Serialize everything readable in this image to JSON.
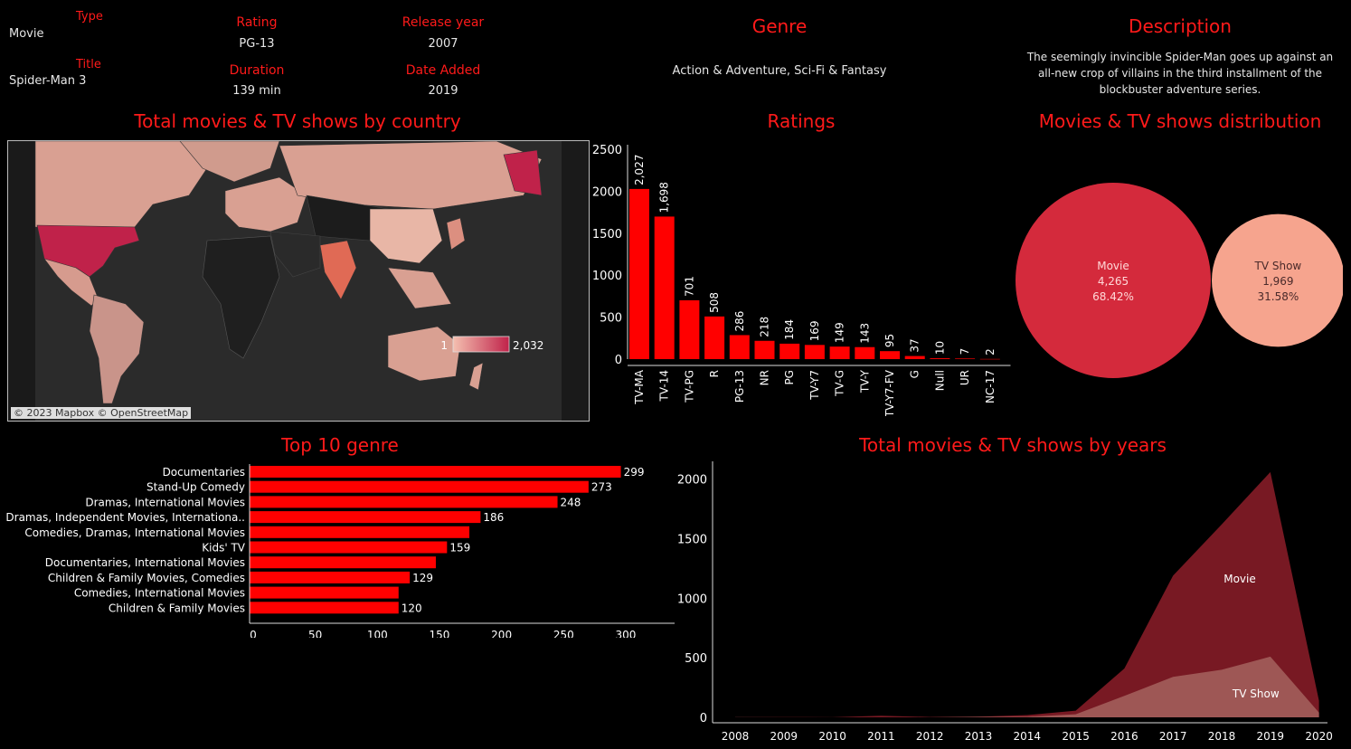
{
  "info": {
    "type_label": "Type",
    "type_value": "Movie",
    "title_label": "Title",
    "title_value": "Spider-Man 3",
    "rating_label": "Rating",
    "rating_value": "PG-13",
    "duration_label": "Duration",
    "duration_value": "139 min",
    "release_label": "Release year",
    "release_value": "2007",
    "added_label": "Date Added",
    "added_value": "2019",
    "genre_label": "Genre",
    "genre_value": "Action & Adventure, Sci-Fi & Fantasy",
    "description_label": "Description",
    "description_value": "The seemingly invincible Spider-Man goes up against an all-new crop of villains in the third installment of the blockbuster adventure series."
  },
  "map": {
    "title": "Total movies & TV shows by country",
    "legend_min": "1",
    "legend_max": "2,032",
    "credit": "© 2023 Mapbox © OpenStreetMap",
    "color_low": "#f4c0b0",
    "color_high": "#c0224a"
  },
  "titles": {
    "ratings": "Ratings",
    "distribution": "Movies & TV shows distribution",
    "genre": "Top 10 genre",
    "years": "Total movies & TV shows by years"
  },
  "chart_data": [
    {
      "type": "bar",
      "title": "Ratings",
      "categories": [
        "TV-MA",
        "TV-14",
        "TV-PG",
        "R",
        "PG-13",
        "NR",
        "PG",
        "TV-Y7",
        "TV-G",
        "TV-Y",
        "TV-Y7-FV",
        "G",
        "Null",
        "UR",
        "NC-17"
      ],
      "values": [
        2027,
        1698,
        701,
        508,
        286,
        218,
        184,
        169,
        149,
        143,
        95,
        37,
        10,
        7,
        2
      ],
      "labels": [
        "2,027",
        "1,698",
        "701",
        "508",
        "286",
        "218",
        "184",
        "169",
        "149",
        "143",
        "95",
        "37",
        "10",
        "7",
        "2"
      ],
      "yticks": [
        "0",
        "500",
        "1000",
        "1500",
        "2000",
        "2500"
      ],
      "ylim": [
        0,
        2500
      ],
      "color": "#ff0000"
    },
    {
      "type": "pie",
      "title": "Movies & TV shows distribution",
      "series": [
        {
          "name": "Movie",
          "value": 4265,
          "label": "4,265",
          "percent": "68.42%",
          "color": "#d42a3c"
        },
        {
          "name": "TV Show",
          "value": 1969,
          "label": "1,969",
          "percent": "31.58%",
          "color": "#f6a48e"
        }
      ]
    },
    {
      "type": "bar",
      "title": "Top 10 genre",
      "orientation": "horizontal",
      "categories": [
        "Documentaries",
        "Stand-Up Comedy",
        "Dramas, International Movies",
        "Dramas, Independent Movies, Internationa..",
        "Comedies, Dramas, International Movies",
        "Kids' TV",
        "Documentaries, International Movies",
        "Children & Family Movies, Comedies",
        "Comedies, International Movies",
        "Children & Family Movies"
      ],
      "values": [
        299,
        273,
        248,
        186,
        177,
        159,
        150,
        129,
        120,
        120
      ],
      "labels": [
        "299",
        "273",
        "248",
        "186",
        "",
        "159",
        "",
        "129",
        "",
        "120"
      ],
      "xticks": [
        "0",
        "50",
        "100",
        "150",
        "200",
        "250",
        "300"
      ],
      "xlim": [
        0,
        335
      ],
      "color": "#ff0000"
    },
    {
      "type": "area",
      "title": "Total movies & TV shows by years",
      "x": [
        "2008",
        "2009",
        "2010",
        "2011",
        "2012",
        "2013",
        "2014",
        "2015",
        "2016",
        "2017",
        "2018",
        "2019",
        "2020"
      ],
      "yticks": [
        "0",
        "500",
        "1000",
        "1500",
        "2000"
      ],
      "ylim": [
        0,
        2150
      ],
      "series": [
        {
          "name": "Movie",
          "values": [
            1,
            2,
            1,
            13,
            3,
            6,
            19,
            56,
            410,
            1190,
            1620,
            2060,
            140
          ],
          "color": "#7e1a25"
        },
        {
          "name": "TV Show",
          "values": [
            1,
            0,
            0,
            0,
            0,
            5,
            5,
            26,
            180,
            340,
            400,
            510,
            40
          ],
          "color": "#a05b58"
        }
      ]
    }
  ]
}
